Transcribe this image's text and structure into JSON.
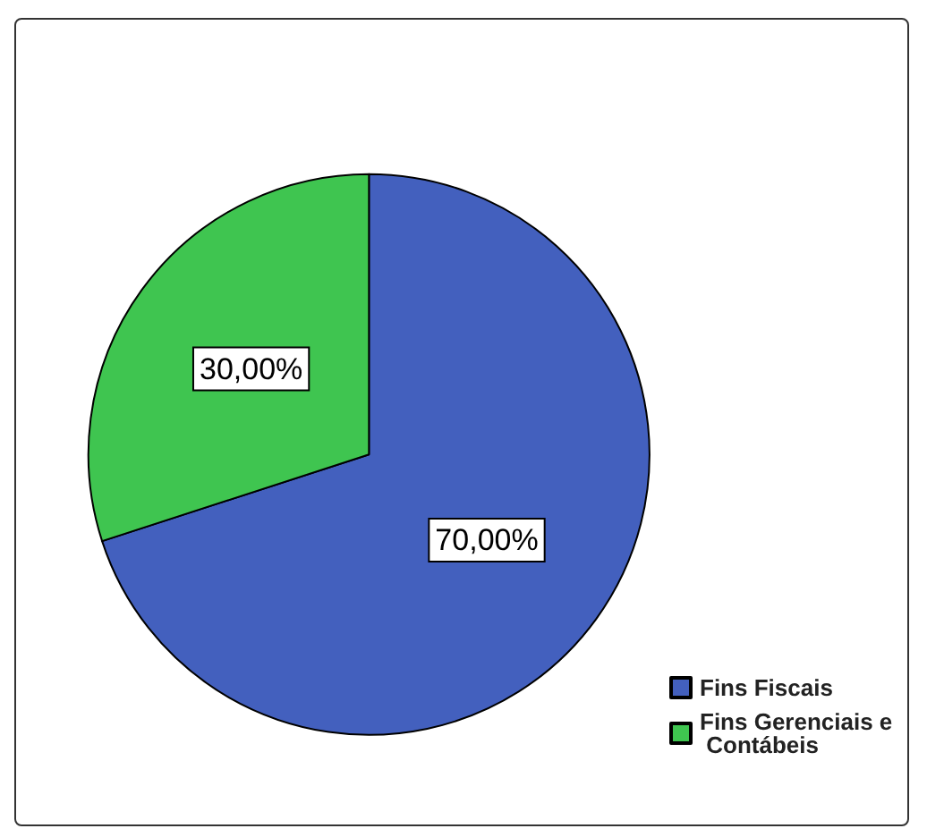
{
  "chart_data": {
    "type": "pie",
    "categories": [
      "Fins Fiscais",
      "Fins Gerenciais e Contábeis"
    ],
    "values": [
      70,
      30
    ],
    "colors": [
      "#4360be",
      "#3fc550"
    ],
    "value_labels": [
      "70,00%",
      "30,00%"
    ],
    "legend": "bottom right"
  }
}
